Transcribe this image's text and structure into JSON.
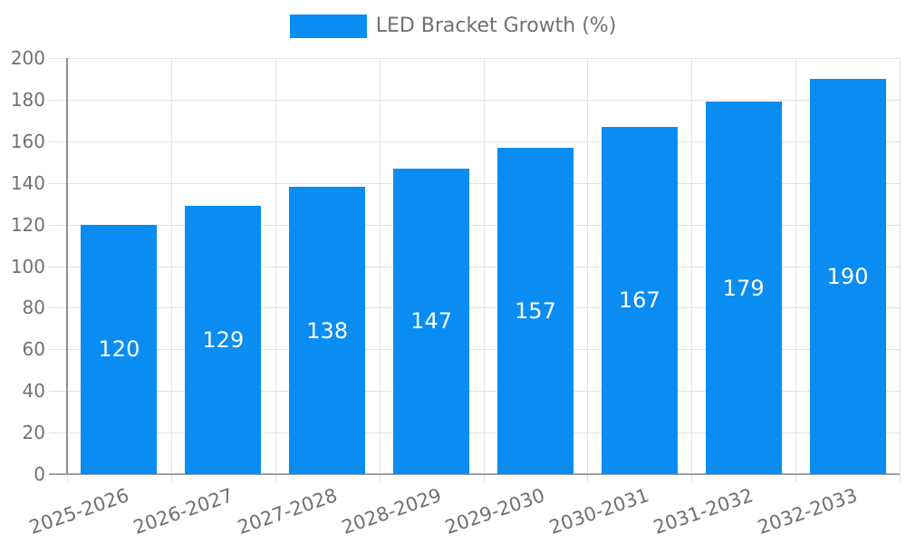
{
  "legend": {
    "label": "LED Bracket Growth (%)"
  },
  "chart_data": {
    "type": "bar",
    "title": "",
    "xlabel": "",
    "ylabel": "",
    "categories": [
      "2025-2026",
      "2026-2027",
      "2027-2028",
      "2028-2029",
      "2029-2030",
      "2030-2031",
      "2031-2032",
      "2032-2033"
    ],
    "series": [
      {
        "name": "LED Bracket Growth (%)",
        "values": [
          120,
          129,
          138,
          147,
          157,
          167,
          179,
          190
        ]
      }
    ],
    "ylim": [
      0,
      200
    ],
    "ytick_step": 20,
    "yticks": [
      0,
      20,
      40,
      60,
      80,
      100,
      120,
      140,
      160,
      180,
      200
    ],
    "grid": true,
    "legend_position": "top-center",
    "colors": {
      "bar": "#0a8df2",
      "value_label": "#ffffff",
      "axis_text": "#717171",
      "gridline": "#e2e2e2",
      "axis_line": "#8f8f8f"
    }
  }
}
